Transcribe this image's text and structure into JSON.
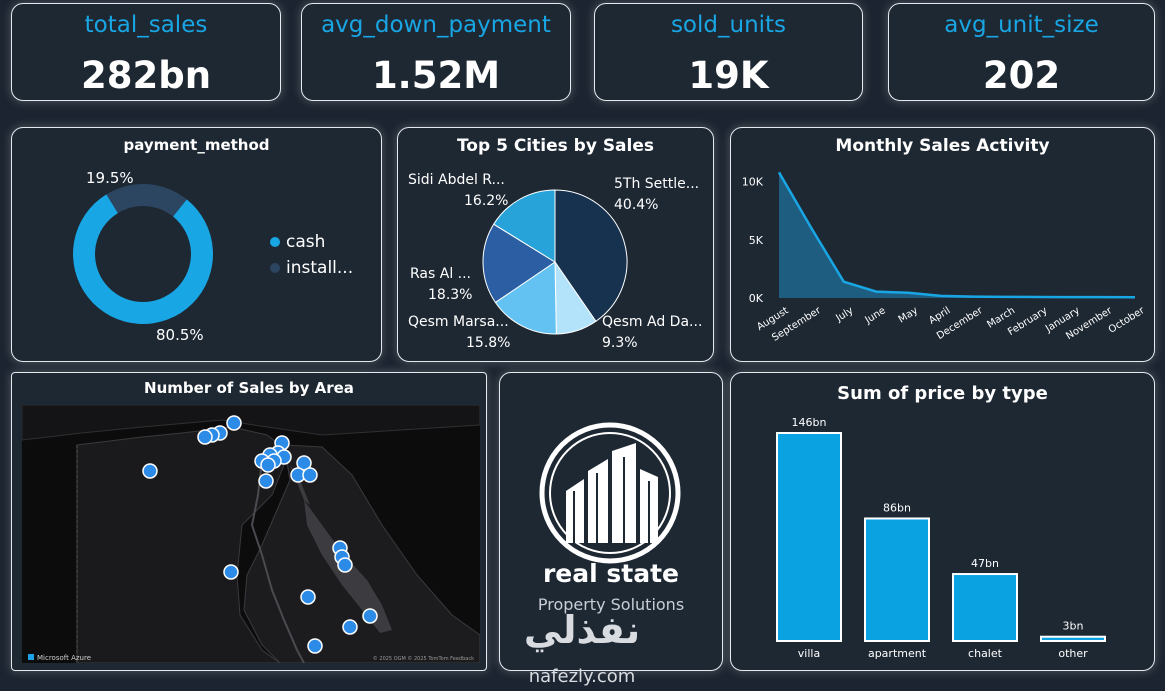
{
  "kpis": [
    {
      "title": "total_sales",
      "value": "282bn"
    },
    {
      "title": "avg_down_payment",
      "value": "1.52M"
    },
    {
      "title": "sold_units",
      "value": "19K"
    },
    {
      "title": "avg_unit_size",
      "value": "202"
    }
  ],
  "payment": {
    "title": "payment_method",
    "legend": [
      {
        "label": "cash",
        "color": "#19a6e4"
      },
      {
        "label": "install...",
        "color": "#2c4560"
      }
    ],
    "pct_cash": "80.5%",
    "pct_install": "19.5%"
  },
  "cities": {
    "title": "Top 5 Cities by Sales",
    "labels": [
      {
        "name": "5Th Settle...",
        "pct": "40.4%"
      },
      {
        "name": "Qesm Ad Da...",
        "pct": "9.3%"
      },
      {
        "name": "Qesm Marsa...",
        "pct": "15.8%"
      },
      {
        "name": "Ras Al ...",
        "pct": "18.3%"
      },
      {
        "name": "Sidi Abdel R...",
        "pct": "16.2%"
      }
    ]
  },
  "monthly": {
    "title": "Monthly Sales Activity",
    "y_ticks": [
      "10K",
      "5K",
      "0K"
    ]
  },
  "map": {
    "title": "Number of Sales by Area",
    "brand": "Microsoft Azure",
    "credits": "© 2025 OGM  © 2025 TomTom  Feedback"
  },
  "logo": {
    "name": "real state",
    "tagline": "Property Solutions"
  },
  "price": {
    "title": "Sum of price by type"
  },
  "watermark": {
    "arabic": "نفذلي",
    "latin": "nafezly.com"
  },
  "chart_data": [
    {
      "type": "pie",
      "title": "payment_method",
      "categories": [
        "cash",
        "install..."
      ],
      "values": [
        80.5,
        19.5
      ]
    },
    {
      "type": "pie",
      "title": "Top 5 Cities by Sales",
      "categories": [
        "5Th Settle...",
        "Qesm Ad Da...",
        "Qesm Marsa...",
        "Ras Al ...",
        "Sidi Abdel R..."
      ],
      "values": [
        40.4,
        9.3,
        15.8,
        18.3,
        16.2
      ],
      "colors": [
        "#17324f",
        "#b2e3fb",
        "#63c2f2",
        "#2b5ea3",
        "#28a3d9"
      ]
    },
    {
      "type": "area",
      "title": "Monthly Sales Activity",
      "categories": [
        "August",
        "September",
        "July",
        "June",
        "May",
        "April",
        "December",
        "March",
        "February",
        "January",
        "November",
        "October"
      ],
      "values": [
        10800,
        6000,
        1400,
        550,
        450,
        180,
        120,
        100,
        90,
        80,
        70,
        60
      ],
      "ylim": [
        0,
        11000
      ],
      "y_ticks": [
        0,
        5000,
        10000
      ]
    },
    {
      "type": "bar",
      "title": "Sum of price by type",
      "categories": [
        "villa",
        "apartment",
        "chalet",
        "other"
      ],
      "values": [
        146,
        86,
        47,
        3
      ],
      "data_labels": [
        "146bn",
        "86bn",
        "47bn",
        "3bn"
      ],
      "ylim": [
        0,
        146
      ]
    }
  ],
  "colors": {
    "accent": "#19a6e4",
    "card_bg": "#1e2833",
    "page_bg": "#1b2430"
  }
}
